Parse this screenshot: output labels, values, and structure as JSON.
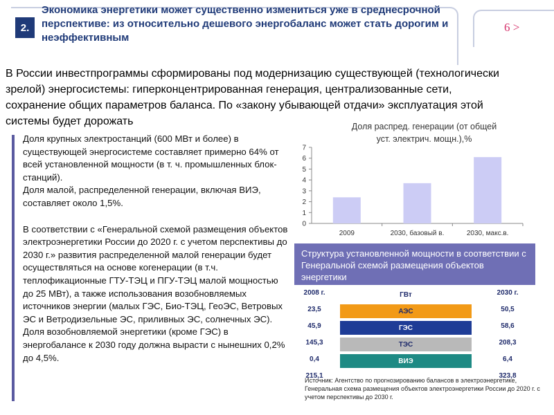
{
  "header": {
    "badge": "2.",
    "title": "Экономика энергетики может существенно измениться уже в среднесрочной перспективе: из относительно дешевого энергобаланс может стать дорогим и неэффективным",
    "page_link": "6 >"
  },
  "intro": {
    "line1": "В России инвестпрограммы сформированы под модернизацию существующей (технологически",
    "line2": "зрелой) энергосистемы: гиперконцентрированная генерация, централизованные сети,",
    "line3": "сохранение общих параметров баланса. По «закону убывающей отдачи» эксплуатация этой",
    "line4": "системы будет дорожать"
  },
  "left_text": {
    "p1": "Доля крупных электростанций (600 МВт и более) в существующей энергосистеме составляет примерно 64% от всей установленной мощности (в т. ч. промышленных блок-станций).",
    "p2": "Доля малой, распределенной генерации, включая ВИЭ, составляет около 1,5%.",
    "p3": "В соответствии с «Генеральной схемой размещения объектов электроэнергетики России до 2020 г. с учетом перспективы до 2030 г.» развития распределенной малой генерации будет осуществляться на основе когенерации (в т.ч. теплофикационные ГТУ-ТЭЦ и ПГУ-ТЭЦ малой мощностью до 25 МВт), а также использования возобновляемых источников энергии (малых ГЭС, Био-ТЭЦ, ГеоЭС, Ветровых ЭС и Ветродизельные ЭС, приливных ЭС, солнечных ЭС). Доля возобновляемой энергетики (кроме ГЭС) в энергобалансе к 2030 году должна вырасти с нынешних 0,2% до 4,5%."
  },
  "chart_data": {
    "type": "bar",
    "title_line1": "Доля распред. генерации (от общей",
    "title_line2": "уст. электрич. мощн.),%",
    "categories": [
      "2009",
      "2030, базовый в.",
      "2030, макс.в."
    ],
    "values": [
      2.4,
      3.7,
      6.1
    ],
    "ylim": [
      0,
      7
    ],
    "yticks": [
      "0",
      "1",
      "2",
      "3",
      "4",
      "5",
      "6",
      "7"
    ],
    "bar_color": "#ccccf5",
    "grid": false
  },
  "structure": {
    "header": "Структура установленной мощности в соответствии с Генеральной схемой размещения объектов энергетики",
    "col_2008": "2008 г.",
    "col_unit": "ГВт",
    "col_2030": "2030 г.",
    "rows": [
      {
        "v2008": "23,5",
        "label": "АЭС",
        "v2030": "50,5",
        "color": "#f29a17",
        "text_color": "#1f2b6b"
      },
      {
        "v2008": "45,9",
        "label": "ГЭС",
        "v2030": "58,6",
        "color": "#1e3c96",
        "text_color": "#ffffff"
      },
      {
        "v2008": "145,3",
        "label": "ТЭС",
        "v2030": "208,3",
        "color": "#b9b9b9",
        "text_color": "#1f2b6b"
      },
      {
        "v2008": "0,4",
        "label": "ВИЭ",
        "v2030": "6,4",
        "color": "#1e8a84",
        "text_color": "#ffffff"
      },
      {
        "v2008": "215,1",
        "label": "",
        "v2030": "323,8",
        "color": "",
        "text_color": "#1f2b6b"
      }
    ],
    "source": "Источник: Агентство по прогнозированию балансов в электроэнергетике, Генеральная схема размещения объектов электроэнергетики России до 2020 г. с учетом перспективы до 2030 г."
  },
  "colors": {
    "accent_dark_blue": "#1f3a78",
    "header_purple": "#6f6fb5",
    "link_pink": "#d6336c"
  }
}
